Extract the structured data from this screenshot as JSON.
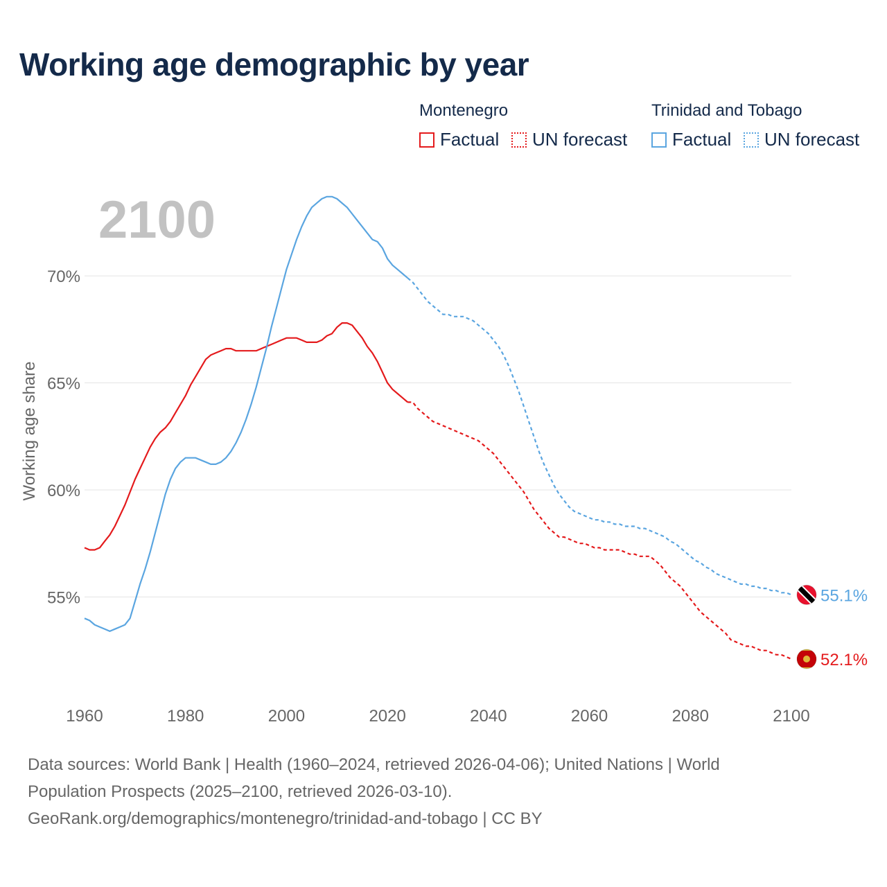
{
  "page_title": "Working age demographic by year",
  "legend": {
    "groups": [
      {
        "title": "Montenegro",
        "factual": "Factual",
        "forecast": "UN forecast",
        "color": "#e41a1c"
      },
      {
        "title": "Trinidad and Tobago",
        "factual": "Factual",
        "forecast": "UN forecast",
        "color": "#5aa5e0"
      }
    ]
  },
  "chart_data": {
    "type": "line",
    "year_label": "2100",
    "ylabel": "Working age share",
    "xlim": [
      1960,
      2103
    ],
    "ylim": [
      51.0,
      73.5
    ],
    "x_ticks": [
      "1960",
      "1980",
      "2000",
      "2020",
      "2040",
      "2060",
      "2080",
      "2100"
    ],
    "y_ticks": [
      "55%",
      "60%",
      "65%",
      "70%"
    ],
    "y_tick_values": [
      55,
      60,
      65,
      70
    ],
    "factual_end_year": 2024,
    "series": [
      {
        "name": "Montenegro",
        "color": "#e41a1c",
        "end_label": "52.1%",
        "points": [
          [
            1960,
            57.3
          ],
          [
            1961,
            57.2
          ],
          [
            1962,
            57.2
          ],
          [
            1963,
            57.3
          ],
          [
            1964,
            57.6
          ],
          [
            1965,
            57.9
          ],
          [
            1966,
            58.3
          ],
          [
            1967,
            58.8
          ],
          [
            1968,
            59.3
          ],
          [
            1969,
            59.9
          ],
          [
            1970,
            60.5
          ],
          [
            1971,
            61.0
          ],
          [
            1972,
            61.5
          ],
          [
            1973,
            62.0
          ],
          [
            1974,
            62.4
          ],
          [
            1975,
            62.7
          ],
          [
            1976,
            62.9
          ],
          [
            1977,
            63.2
          ],
          [
            1978,
            63.6
          ],
          [
            1979,
            64.0
          ],
          [
            1980,
            64.4
          ],
          [
            1981,
            64.9
          ],
          [
            1982,
            65.3
          ],
          [
            1983,
            65.7
          ],
          [
            1984,
            66.1
          ],
          [
            1985,
            66.3
          ],
          [
            1986,
            66.4
          ],
          [
            1987,
            66.5
          ],
          [
            1988,
            66.6
          ],
          [
            1989,
            66.6
          ],
          [
            1990,
            66.5
          ],
          [
            1991,
            66.5
          ],
          [
            1992,
            66.5
          ],
          [
            1993,
            66.5
          ],
          [
            1994,
            66.5
          ],
          [
            1995,
            66.6
          ],
          [
            1996,
            66.7
          ],
          [
            1997,
            66.8
          ],
          [
            1998,
            66.9
          ],
          [
            1999,
            67.0
          ],
          [
            2000,
            67.1
          ],
          [
            2001,
            67.1
          ],
          [
            2002,
            67.1
          ],
          [
            2003,
            67.0
          ],
          [
            2004,
            66.9
          ],
          [
            2005,
            66.9
          ],
          [
            2006,
            66.9
          ],
          [
            2007,
            67.0
          ],
          [
            2008,
            67.2
          ],
          [
            2009,
            67.3
          ],
          [
            2010,
            67.6
          ],
          [
            2011,
            67.8
          ],
          [
            2012,
            67.8
          ],
          [
            2013,
            67.7
          ],
          [
            2014,
            67.4
          ],
          [
            2015,
            67.1
          ],
          [
            2016,
            66.7
          ],
          [
            2017,
            66.4
          ],
          [
            2018,
            66.0
          ],
          [
            2019,
            65.5
          ],
          [
            2020,
            65.0
          ],
          [
            2021,
            64.7
          ],
          [
            2022,
            64.5
          ],
          [
            2023,
            64.3
          ],
          [
            2024,
            64.1
          ],
          [
            2025,
            64.1
          ],
          [
            2026,
            63.8
          ],
          [
            2027,
            63.6
          ],
          [
            2028,
            63.4
          ],
          [
            2029,
            63.2
          ],
          [
            2030,
            63.1
          ],
          [
            2031,
            63.0
          ],
          [
            2032,
            62.9
          ],
          [
            2033,
            62.8
          ],
          [
            2034,
            62.7
          ],
          [
            2035,
            62.6
          ],
          [
            2036,
            62.5
          ],
          [
            2037,
            62.4
          ],
          [
            2038,
            62.3
          ],
          [
            2039,
            62.1
          ],
          [
            2040,
            61.9
          ],
          [
            2041,
            61.7
          ],
          [
            2042,
            61.4
          ],
          [
            2043,
            61.1
          ],
          [
            2044,
            60.8
          ],
          [
            2045,
            60.5
          ],
          [
            2046,
            60.2
          ],
          [
            2047,
            59.9
          ],
          [
            2048,
            59.5
          ],
          [
            2049,
            59.1
          ],
          [
            2050,
            58.8
          ],
          [
            2051,
            58.5
          ],
          [
            2052,
            58.2
          ],
          [
            2053,
            58.0
          ],
          [
            2054,
            57.8
          ],
          [
            2055,
            57.8
          ],
          [
            2056,
            57.7
          ],
          [
            2057,
            57.6
          ],
          [
            2058,
            57.5
          ],
          [
            2059,
            57.5
          ],
          [
            2060,
            57.4
          ],
          [
            2061,
            57.3
          ],
          [
            2062,
            57.3
          ],
          [
            2063,
            57.2
          ],
          [
            2064,
            57.2
          ],
          [
            2065,
            57.2
          ],
          [
            2066,
            57.2
          ],
          [
            2067,
            57.1
          ],
          [
            2068,
            57.0
          ],
          [
            2069,
            57.0
          ],
          [
            2070,
            56.9
          ],
          [
            2071,
            56.9
          ],
          [
            2072,
            56.9
          ],
          [
            2073,
            56.7
          ],
          [
            2074,
            56.5
          ],
          [
            2075,
            56.2
          ],
          [
            2076,
            55.9
          ],
          [
            2077,
            55.7
          ],
          [
            2078,
            55.5
          ],
          [
            2079,
            55.2
          ],
          [
            2080,
            54.9
          ],
          [
            2081,
            54.6
          ],
          [
            2082,
            54.3
          ],
          [
            2083,
            54.1
          ],
          [
            2084,
            53.9
          ],
          [
            2085,
            53.7
          ],
          [
            2086,
            53.5
          ],
          [
            2087,
            53.3
          ],
          [
            2088,
            53.0
          ],
          [
            2089,
            52.9
          ],
          [
            2090,
            52.8
          ],
          [
            2091,
            52.7
          ],
          [
            2092,
            52.7
          ],
          [
            2093,
            52.6
          ],
          [
            2094,
            52.5
          ],
          [
            2095,
            52.5
          ],
          [
            2096,
            52.4
          ],
          [
            2097,
            52.3
          ],
          [
            2098,
            52.3
          ],
          [
            2099,
            52.2
          ],
          [
            2100,
            52.1
          ]
        ]
      },
      {
        "name": "Trinidad and Tobago",
        "color": "#5aa5e0",
        "end_label": "55.1%",
        "points": [
          [
            1960,
            54.0
          ],
          [
            1961,
            53.9
          ],
          [
            1962,
            53.7
          ],
          [
            1963,
            53.6
          ],
          [
            1964,
            53.5
          ],
          [
            1965,
            53.4
          ],
          [
            1966,
            53.5
          ],
          [
            1967,
            53.6
          ],
          [
            1968,
            53.7
          ],
          [
            1969,
            54.0
          ],
          [
            1970,
            54.8
          ],
          [
            1971,
            55.6
          ],
          [
            1972,
            56.3
          ],
          [
            1973,
            57.1
          ],
          [
            1974,
            58.0
          ],
          [
            1975,
            58.9
          ],
          [
            1976,
            59.8
          ],
          [
            1977,
            60.5
          ],
          [
            1978,
            61.0
          ],
          [
            1979,
            61.3
          ],
          [
            1980,
            61.5
          ],
          [
            1981,
            61.5
          ],
          [
            1982,
            61.5
          ],
          [
            1983,
            61.4
          ],
          [
            1984,
            61.3
          ],
          [
            1985,
            61.2
          ],
          [
            1986,
            61.2
          ],
          [
            1987,
            61.3
          ],
          [
            1988,
            61.5
          ],
          [
            1989,
            61.8
          ],
          [
            1990,
            62.2
          ],
          [
            1991,
            62.7
          ],
          [
            1992,
            63.3
          ],
          [
            1993,
            64.0
          ],
          [
            1994,
            64.8
          ],
          [
            1995,
            65.7
          ],
          [
            1996,
            66.6
          ],
          [
            1997,
            67.6
          ],
          [
            1998,
            68.5
          ],
          [
            1999,
            69.4
          ],
          [
            2000,
            70.3
          ],
          [
            2001,
            71.0
          ],
          [
            2002,
            71.7
          ],
          [
            2003,
            72.3
          ],
          [
            2004,
            72.8
          ],
          [
            2005,
            73.2
          ],
          [
            2006,
            73.4
          ],
          [
            2007,
            73.6
          ],
          [
            2008,
            73.7
          ],
          [
            2009,
            73.7
          ],
          [
            2010,
            73.6
          ],
          [
            2011,
            73.4
          ],
          [
            2012,
            73.2
          ],
          [
            2013,
            72.9
          ],
          [
            2014,
            72.6
          ],
          [
            2015,
            72.3
          ],
          [
            2016,
            72.0
          ],
          [
            2017,
            71.7
          ],
          [
            2018,
            71.6
          ],
          [
            2019,
            71.3
          ],
          [
            2020,
            70.8
          ],
          [
            2021,
            70.5
          ],
          [
            2022,
            70.3
          ],
          [
            2023,
            70.1
          ],
          [
            2024,
            69.9
          ],
          [
            2025,
            69.7
          ],
          [
            2026,
            69.4
          ],
          [
            2027,
            69.1
          ],
          [
            2028,
            68.8
          ],
          [
            2029,
            68.6
          ],
          [
            2030,
            68.4
          ],
          [
            2031,
            68.2
          ],
          [
            2032,
            68.2
          ],
          [
            2033,
            68.1
          ],
          [
            2034,
            68.1
          ],
          [
            2035,
            68.1
          ],
          [
            2036,
            68.0
          ],
          [
            2037,
            67.9
          ],
          [
            2038,
            67.7
          ],
          [
            2039,
            67.5
          ],
          [
            2040,
            67.3
          ],
          [
            2041,
            67.0
          ],
          [
            2042,
            66.7
          ],
          [
            2043,
            66.3
          ],
          [
            2044,
            65.8
          ],
          [
            2045,
            65.2
          ],
          [
            2046,
            64.6
          ],
          [
            2047,
            63.9
          ],
          [
            2048,
            63.2
          ],
          [
            2049,
            62.5
          ],
          [
            2050,
            61.8
          ],
          [
            2051,
            61.2
          ],
          [
            2052,
            60.7
          ],
          [
            2053,
            60.2
          ],
          [
            2054,
            59.8
          ],
          [
            2055,
            59.5
          ],
          [
            2056,
            59.2
          ],
          [
            2057,
            59.0
          ],
          [
            2058,
            58.9
          ],
          [
            2059,
            58.8
          ],
          [
            2060,
            58.7
          ],
          [
            2061,
            58.6
          ],
          [
            2062,
            58.6
          ],
          [
            2063,
            58.5
          ],
          [
            2064,
            58.5
          ],
          [
            2065,
            58.4
          ],
          [
            2066,
            58.4
          ],
          [
            2067,
            58.3
          ],
          [
            2068,
            58.3
          ],
          [
            2069,
            58.3
          ],
          [
            2070,
            58.2
          ],
          [
            2071,
            58.2
          ],
          [
            2072,
            58.1
          ],
          [
            2073,
            58.0
          ],
          [
            2074,
            57.9
          ],
          [
            2075,
            57.8
          ],
          [
            2076,
            57.6
          ],
          [
            2077,
            57.5
          ],
          [
            2078,
            57.3
          ],
          [
            2079,
            57.1
          ],
          [
            2080,
            56.9
          ],
          [
            2081,
            56.7
          ],
          [
            2082,
            56.6
          ],
          [
            2083,
            56.4
          ],
          [
            2084,
            56.3
          ],
          [
            2085,
            56.1
          ],
          [
            2086,
            56.0
          ],
          [
            2087,
            55.9
          ],
          [
            2088,
            55.8
          ],
          [
            2089,
            55.7
          ],
          [
            2090,
            55.6
          ],
          [
            2091,
            55.6
          ],
          [
            2092,
            55.5
          ],
          [
            2093,
            55.5
          ],
          [
            2094,
            55.4
          ],
          [
            2095,
            55.4
          ],
          [
            2096,
            55.3
          ],
          [
            2097,
            55.3
          ],
          [
            2098,
            55.2
          ],
          [
            2099,
            55.2
          ],
          [
            2100,
            55.1
          ]
        ]
      }
    ]
  },
  "footer": {
    "line1": "Data sources: World Bank | Health (1960–2024, retrieved 2026-04-06); United Nations | World",
    "line2": "Population Prospects (2025–2100, retrieved 2026-03-10).",
    "line3": "GeoRank.org/demographics/montenegro/trinidad-and-tobago | CC BY"
  }
}
